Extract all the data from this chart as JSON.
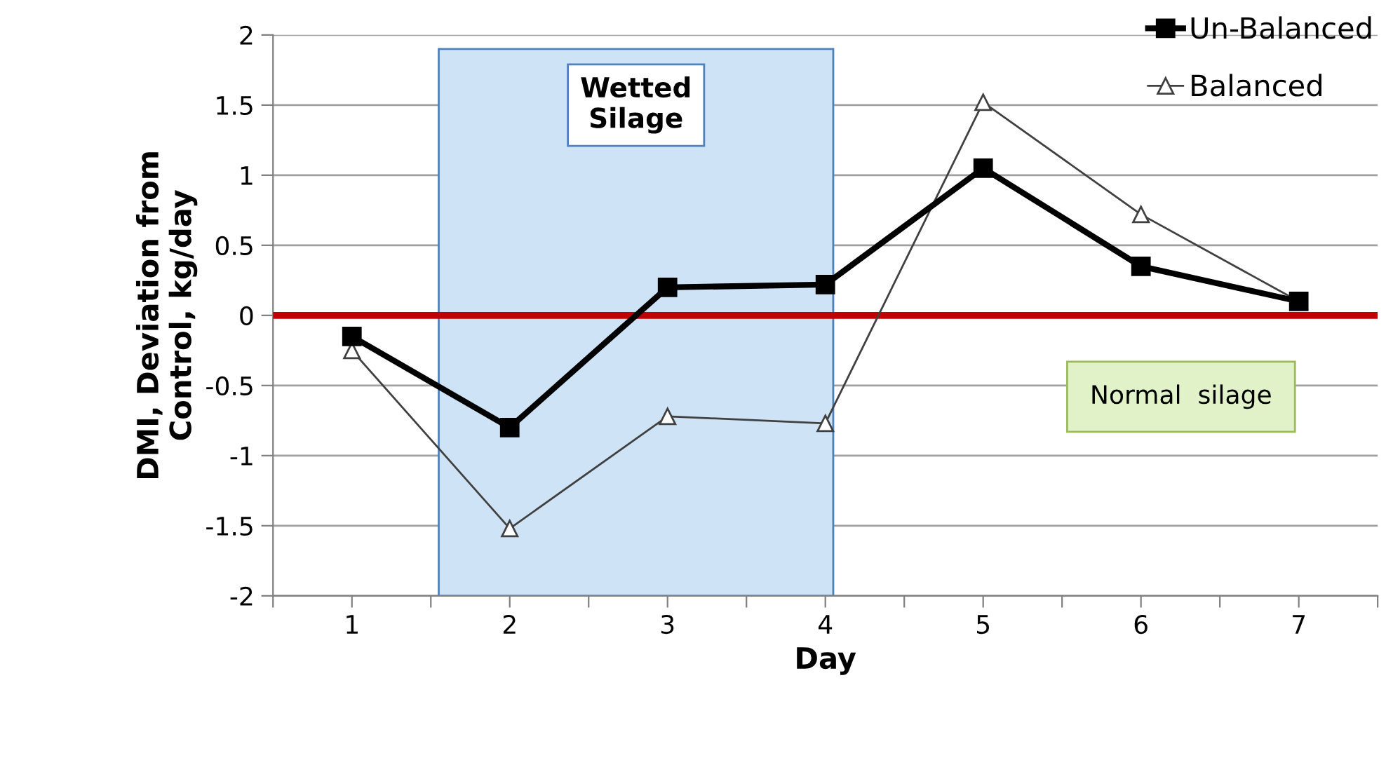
{
  "chart_data": {
    "type": "line",
    "xlabel": "Day",
    "ylabel": "DMI, Deviation from\nControl, kg/day",
    "x": [
      1,
      2,
      3,
      4,
      5,
      6,
      7
    ],
    "xlim": [
      0.5,
      7.5
    ],
    "xticks": [
      {
        "value": 0.5,
        "label": null
      },
      1,
      {
        "value": 1.5,
        "label": null
      },
      2,
      {
        "value": 2.5,
        "label": null
      },
      3,
      {
        "value": 3.5,
        "label": null
      },
      4,
      {
        "value": 4.5,
        "label": null
      },
      5,
      {
        "value": 5.5,
        "label": null
      },
      6,
      {
        "value": 6.5,
        "label": null
      },
      7,
      {
        "value": 7.5,
        "label": null
      }
    ],
    "ylim": [
      -2,
      2
    ],
    "yticks": [
      -2,
      -1.5,
      -1,
      -0.5,
      0,
      0.5,
      1,
      1.5,
      2
    ],
    "grid": "y",
    "legend": "top right",
    "series": [
      {
        "name": "Un-Balanced",
        "color": "#000000",
        "marker": "square",
        "values": [
          -0.15,
          -0.8,
          0.2,
          0.22,
          1.05,
          0.35,
          0.1
        ]
      },
      {
        "name": "Balanced",
        "color": "#404040",
        "marker": "triangle",
        "values": [
          -0.25,
          -1.52,
          -0.72,
          -0.77,
          1.52,
          0.72,
          0.1
        ]
      }
    ],
    "ref_lines": [
      {
        "axis": "y",
        "value": 0,
        "label": null,
        "color": "#c00000"
      }
    ],
    "bands": [
      {
        "axis": "x",
        "from": 1.55,
        "to": 4.05,
        "label": "Wetted\nSilage",
        "color": "#cfe3f7"
      }
    ],
    "annotations": [
      "Normal  silage"
    ]
  }
}
